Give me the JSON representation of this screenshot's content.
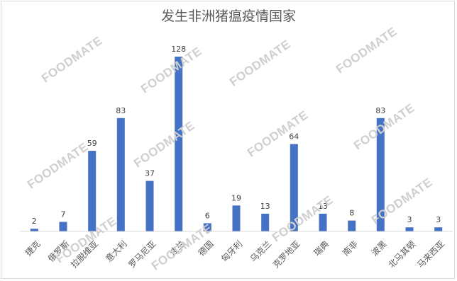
{
  "chart_data": {
    "type": "bar",
    "title": "发生非洲猪瘟疫情国家",
    "categories": [
      "捷克",
      "俄罗斯",
      "拉脱维亚",
      "意大利",
      "罗马尼亚",
      "波兰",
      "德国",
      "匈牙利",
      "乌克兰",
      "克罗地亚",
      "瑞典",
      "南非",
      "波黑",
      "北马其顿",
      "马来西亚"
    ],
    "values": [
      2,
      7,
      59,
      83,
      37,
      128,
      6,
      19,
      13,
      64,
      13,
      8,
      83,
      3,
      3
    ],
    "ylim": [
      0,
      128
    ],
    "grid": false,
    "legend": "none",
    "bar_color": "#4472c4"
  },
  "watermark": {
    "text": "FOODMATE"
  }
}
